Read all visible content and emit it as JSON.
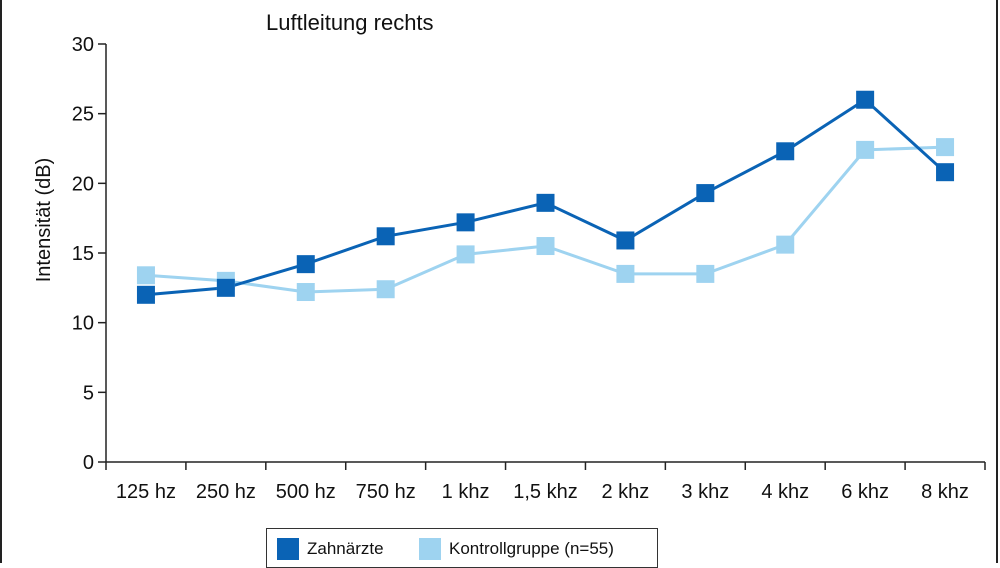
{
  "chart_data": {
    "type": "line",
    "title": "Luftleitung rechts",
    "xlabel": "",
    "ylabel": "Intensität (dB)",
    "categories": [
      "125 hz",
      "250 hz",
      "500 hz",
      "750 hz",
      "1 khz",
      "1,5 khz",
      "2 khz",
      "3 khz",
      "4 khz",
      "6 khz",
      "8 khz"
    ],
    "yticks": [
      0,
      5,
      10,
      15,
      20,
      25,
      30
    ],
    "ylim": [
      0,
      30
    ],
    "grid": false,
    "legend_position": "bottom",
    "series": [
      {
        "name": "Zahnärzte",
        "color": "#0a63b5",
        "values": [
          12.0,
          12.5,
          14.2,
          16.2,
          17.2,
          18.6,
          15.9,
          19.3,
          22.3,
          26.0,
          20.8
        ]
      },
      {
        "name": "Kontrollgruppe (n=55)",
        "color": "#9ed3f0",
        "values": [
          13.4,
          13.0,
          12.2,
          12.4,
          14.9,
          15.5,
          13.5,
          13.5,
          15.6,
          22.4,
          22.6
        ]
      }
    ]
  }
}
